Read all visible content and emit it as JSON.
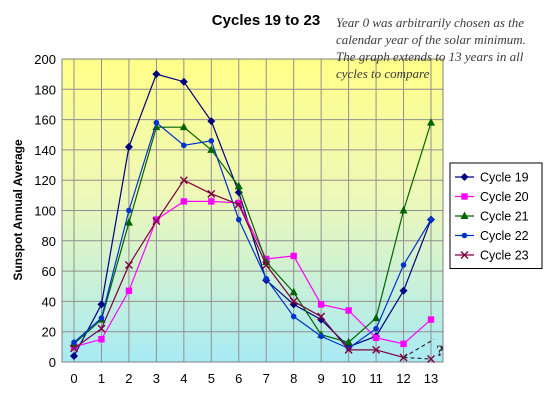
{
  "annotation": "Year 0 was arbitrarily chosen as the calendar year of the solar minimum. The graph extends to 13 years in all cycles to compare",
  "chart_data": {
    "type": "line",
    "title": "Cycles 19 to 23",
    "xlabel": "",
    "ylabel": "Sunspot Annual Average",
    "x": [
      0,
      1,
      2,
      3,
      4,
      5,
      6,
      7,
      8,
      9,
      10,
      11,
      12,
      13
    ],
    "xlim": [
      0,
      13
    ],
    "ylim": [
      0,
      200
    ],
    "yticks": [
      0,
      20,
      40,
      60,
      80,
      100,
      120,
      140,
      160,
      180,
      200
    ],
    "grid": true,
    "legend_position": "right",
    "series": [
      {
        "name": "Cycle 19",
        "color": "#000080",
        "marker": "diamond",
        "values": [
          4,
          38,
          142,
          190,
          185,
          159,
          112,
          54,
          38,
          28,
          10,
          17,
          47,
          94
        ]
      },
      {
        "name": "Cycle 20",
        "color": "#ff00ff",
        "marker": "square",
        "values": [
          10,
          15,
          47,
          94,
          106,
          106,
          105,
          68,
          70,
          38,
          34,
          16,
          12,
          28
        ]
      },
      {
        "name": "Cycle 21",
        "color": "#006400",
        "marker": "triangle",
        "values": [
          12,
          28,
          92,
          155,
          155,
          140,
          116,
          66,
          46,
          18,
          13,
          29,
          100,
          158
        ]
      },
      {
        "name": "Cycle 22",
        "color": "#0033cc",
        "marker": "dot",
        "values": [
          13,
          29,
          100,
          158,
          143,
          146,
          94,
          55,
          30,
          17,
          9,
          22,
          64,
          94
        ]
      },
      {
        "name": "Cycle 23",
        "color": "#800040",
        "marker": "x",
        "values": [
          9,
          22,
          64,
          93,
          120,
          111,
          104,
          64,
          40,
          30,
          8,
          8,
          3,
          null
        ]
      }
    ],
    "projection": {
      "series": "Cycle 23",
      "x": [
        12,
        13
      ],
      "values": [
        3,
        2
      ],
      "style": "dashed",
      "label": "?"
    }
  }
}
